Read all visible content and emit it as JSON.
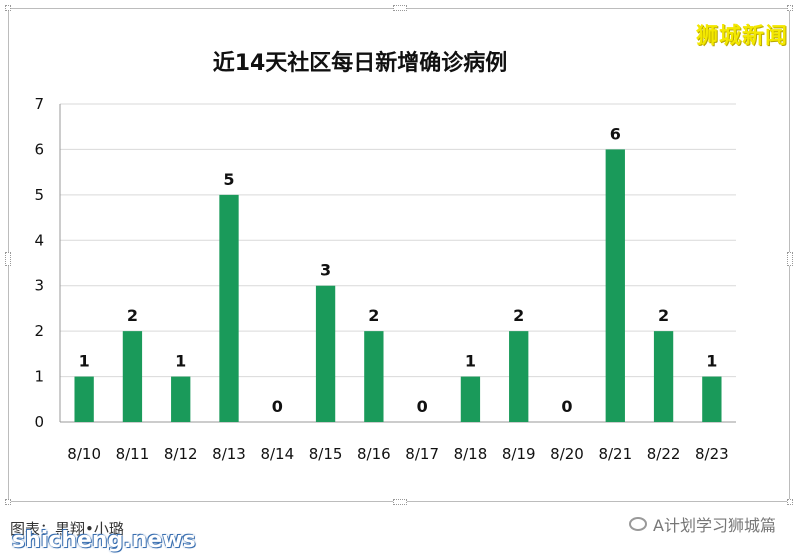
{
  "brand": "狮城新闻",
  "footer": {
    "credit": "图表：黒翔•小璐",
    "watermark": "shicheng.news",
    "wechat": "A计划学习狮城篇",
    "wechat_icon": "wechat-icon"
  },
  "colors": {
    "bar": "#1a9a5a",
    "grid": "#d9d9d9",
    "brand": "#f3e800"
  },
  "chart_data": {
    "type": "bar",
    "title": "近14天社区每日新增确诊病例",
    "xlabel": "",
    "ylabel": "",
    "categories": [
      "8/10",
      "8/11",
      "8/12",
      "8/13",
      "8/14",
      "8/15",
      "8/16",
      "8/17",
      "8/18",
      "8/19",
      "8/20",
      "8/21",
      "8/22",
      "8/23"
    ],
    "values": [
      1,
      2,
      1,
      5,
      0,
      3,
      2,
      0,
      1,
      2,
      0,
      6,
      2,
      1
    ],
    "ylim": [
      0,
      7
    ],
    "yticks": [
      0,
      1,
      2,
      3,
      4,
      5,
      6,
      7
    ],
    "grid": true,
    "data_labels": true
  }
}
